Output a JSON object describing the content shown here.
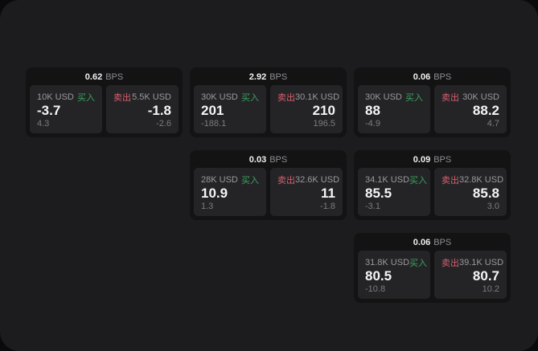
{
  "labels": {
    "bps_unit": "BPS",
    "buy": "买入",
    "sell": "卖出"
  },
  "colors": {
    "window_bg": "#1c1c1e",
    "card_bg": "#131314",
    "panel_bg": "#242427",
    "buy_green": "#3aa35c",
    "sell_red": "#d75f6d"
  },
  "cards": [
    {
      "bps": "0.62",
      "buy": {
        "amount": "10K USD",
        "price": "-3.7",
        "delta": "4.3"
      },
      "sell": {
        "amount": "5.5K USD",
        "price": "-1.8",
        "delta": "-2.6"
      }
    },
    {
      "bps": "2.92",
      "buy": {
        "amount": "30K USD",
        "price": "201",
        "delta": "-188.1"
      },
      "sell": {
        "amount": "30.1K USD",
        "price": "210",
        "delta": "196.5"
      }
    },
    {
      "bps": "0.06",
      "buy": {
        "amount": "30K USD",
        "price": "88",
        "delta": "-4.9"
      },
      "sell": {
        "amount": "30K USD",
        "price": "88.2",
        "delta": "4.7"
      }
    },
    {
      "bps": "0.03",
      "buy": {
        "amount": "28K USD",
        "price": "10.9",
        "delta": "1.3"
      },
      "sell": {
        "amount": "32.6K USD",
        "price": "11",
        "delta": "-1.8"
      }
    },
    {
      "bps": "0.09",
      "buy": {
        "amount": "34.1K USD",
        "price": "85.5",
        "delta": "-3.1"
      },
      "sell": {
        "amount": "32.8K USD",
        "price": "85.8",
        "delta": "3.0"
      }
    },
    {
      "bps": "0.06",
      "buy": {
        "amount": "31.8K USD",
        "price": "80.5",
        "delta": "-10.8"
      },
      "sell": {
        "amount": "39.1K USD",
        "price": "80.7",
        "delta": "10.2"
      }
    }
  ]
}
